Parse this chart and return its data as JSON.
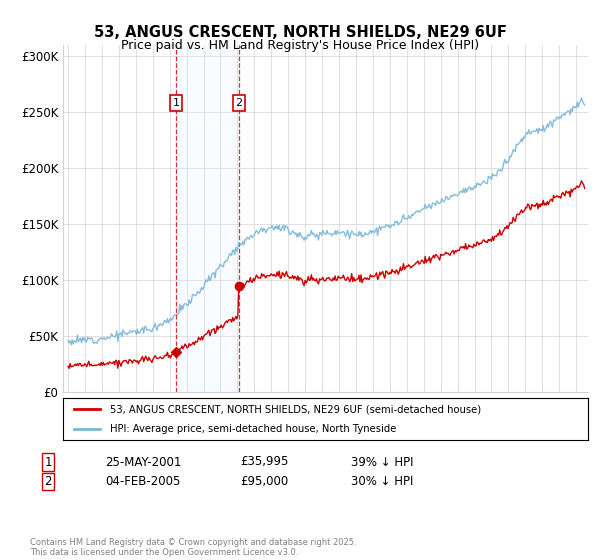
{
  "title": "53, ANGUS CRESCENT, NORTH SHIELDS, NE29 6UF",
  "subtitle": "Price paid vs. HM Land Registry's House Price Index (HPI)",
  "legend_line1": "53, ANGUS CRESCENT, NORTH SHIELDS, NE29 6UF (semi-detached house)",
  "legend_line2": "HPI: Average price, semi-detached house, North Tyneside",
  "transaction1_date": "25-MAY-2001",
  "transaction1_price": "£35,995",
  "transaction1_hpi": "39% ↓ HPI",
  "transaction2_date": "04-FEB-2005",
  "transaction2_price": "£95,000",
  "transaction2_hpi": "30% ↓ HPI",
  "footnote": "Contains HM Land Registry data © Crown copyright and database right 2025.\nThis data is licensed under the Open Government Licence v3.0.",
  "hpi_color": "#7ab6d8",
  "price_color": "#cc0000",
  "shade_color": "#ddeeff",
  "vline_color": "#cc0000",
  "ylim": [
    0,
    310000
  ],
  "yticks": [
    0,
    50000,
    100000,
    150000,
    200000,
    250000,
    300000
  ],
  "ytick_labels": [
    "£0",
    "£50K",
    "£100K",
    "£150K",
    "£200K",
    "£250K",
    "£300K"
  ],
  "transaction1_x": 2001.38,
  "transaction1_y": 35995,
  "transaction2_x": 2005.09,
  "transaction2_y": 95000,
  "shade_x1": 2001.38,
  "shade_x2": 2005.09,
  "xmin": 1994.7,
  "xmax": 2025.7
}
